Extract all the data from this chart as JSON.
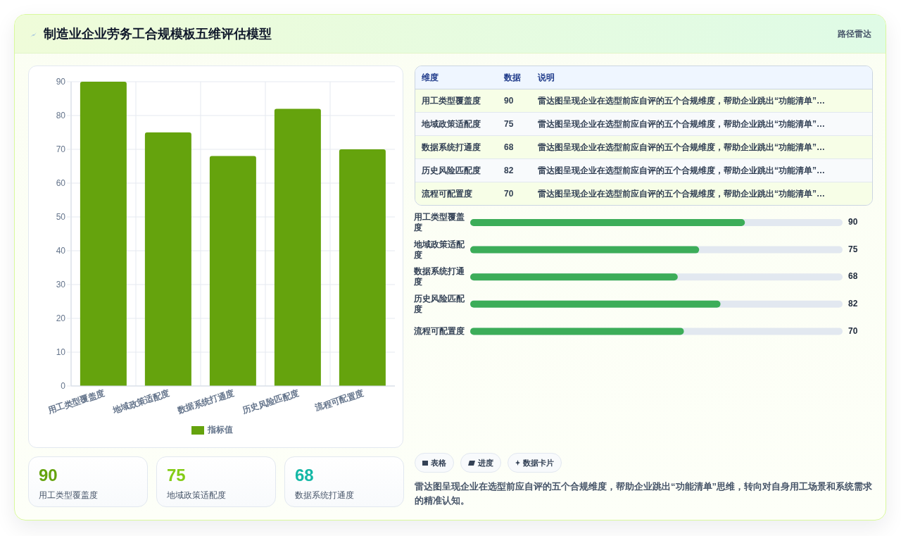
{
  "chart_data": [
    {
      "type": "bar",
      "title": "制造业企业劳务工合规模板五维评估模型",
      "annotations": [
        "路径雷达"
      ],
      "categories": [
        "用工类型覆盖度",
        "地域政策适配度",
        "数据系统打通度",
        "历史风险匹配度",
        "流程可配置度"
      ],
      "series": [
        {
          "name": "指标值",
          "color": "#65a30d",
          "values": [
            90,
            75,
            68,
            82,
            70
          ]
        }
      ],
      "ylim": [
        0,
        90
      ],
      "yticks": [
        0,
        10,
        20,
        30,
        40,
        50,
        60,
        70,
        80,
        90
      ],
      "grid": true,
      "legend": "bottom"
    },
    {
      "type": "other",
      "categories": [
        "用工类型覆盖度",
        "地域政策适配度",
        "数据系统打通度",
        "历史风险匹配度",
        "流程可配置度"
      ],
      "values": [
        90,
        75,
        68,
        82,
        70
      ],
      "data_labels": true,
      "annotations": [
        "维度",
        "数据",
        "说明",
        "雷达图呈现企业在选型前应自评的五个合规维度，帮助企业跳出“功能清单”…",
        "雷达图呈现企业在选型前应自评的五个合规维度，帮助企业跳出“功能清单”…",
        "雷达图呈现企业在选型前应自评的五个合规维度，帮助企业跳出“功能清单”…",
        "雷达图呈现企业在选型前应自评的五个合规维度，帮助企业跳出“功能清单”…",
        "雷达图呈现企业在选型前应自评的五个合规维度，帮助企业跳出“功能清单”…"
      ]
    },
    {
      "type": "bar",
      "orientation": "horizontal",
      "categories": [
        "用工类型覆盖度",
        "地域政策适配度",
        "数据系统打通度",
        "历史风险匹配度",
        "流程可配置度"
      ],
      "values": [
        90,
        75,
        68,
        82,
        70
      ],
      "color": "#3cad59",
      "xlim": [
        0,
        122
      ],
      "data_labels": true,
      "tick_labels": "y"
    },
    {
      "type": "other",
      "categories": [
        "用工类型覆盖度",
        "地域政策适配度",
        "数据系统打通度"
      ],
      "values": [
        90,
        75,
        68
      ],
      "data_labels": true
    },
    {
      "type": "other",
      "annotations": [
        "表格",
        "进度",
        "数据卡片",
        "雷达图呈现企业在选型前应自评的五个合规维度，帮助企业跳出“功能清单”思维，转向对自身用工场景和系统需求的精准认知。"
      ]
    }
  ]
}
